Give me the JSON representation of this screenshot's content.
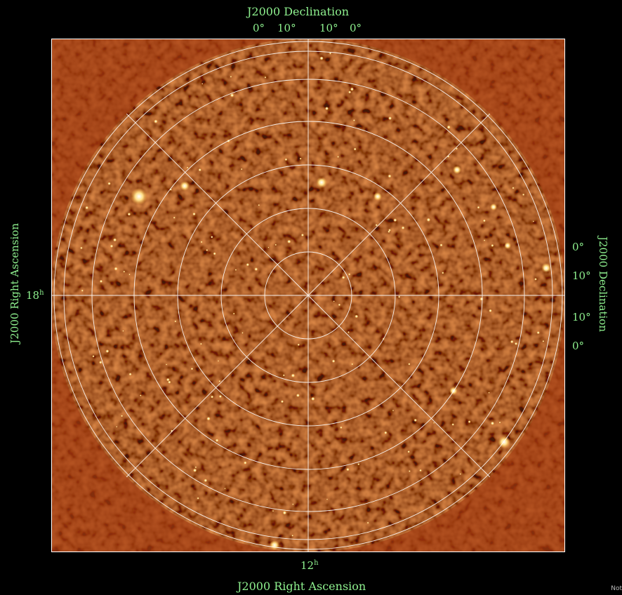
{
  "top_axis": {
    "title": "J2000 Declination",
    "ticks": [
      "0°",
      "10°",
      "10°",
      "0°"
    ]
  },
  "bottom_axis": {
    "title": "J2000 Right Ascension",
    "tick_hours": "12",
    "tick_unit": "h"
  },
  "left_axis": {
    "title": "J2000 Right Ascension",
    "tick_hours": "18",
    "tick_unit": "h"
  },
  "right_axis": {
    "title": "J2000 Declination",
    "ticks": [
      "0°",
      "10°",
      "10°",
      "0°"
    ]
  },
  "credit_text": "Not",
  "colors": {
    "background": "#000000",
    "map_base": "#a33a10",
    "grid": "#ffffff",
    "labels": "#8ef08e"
  }
}
